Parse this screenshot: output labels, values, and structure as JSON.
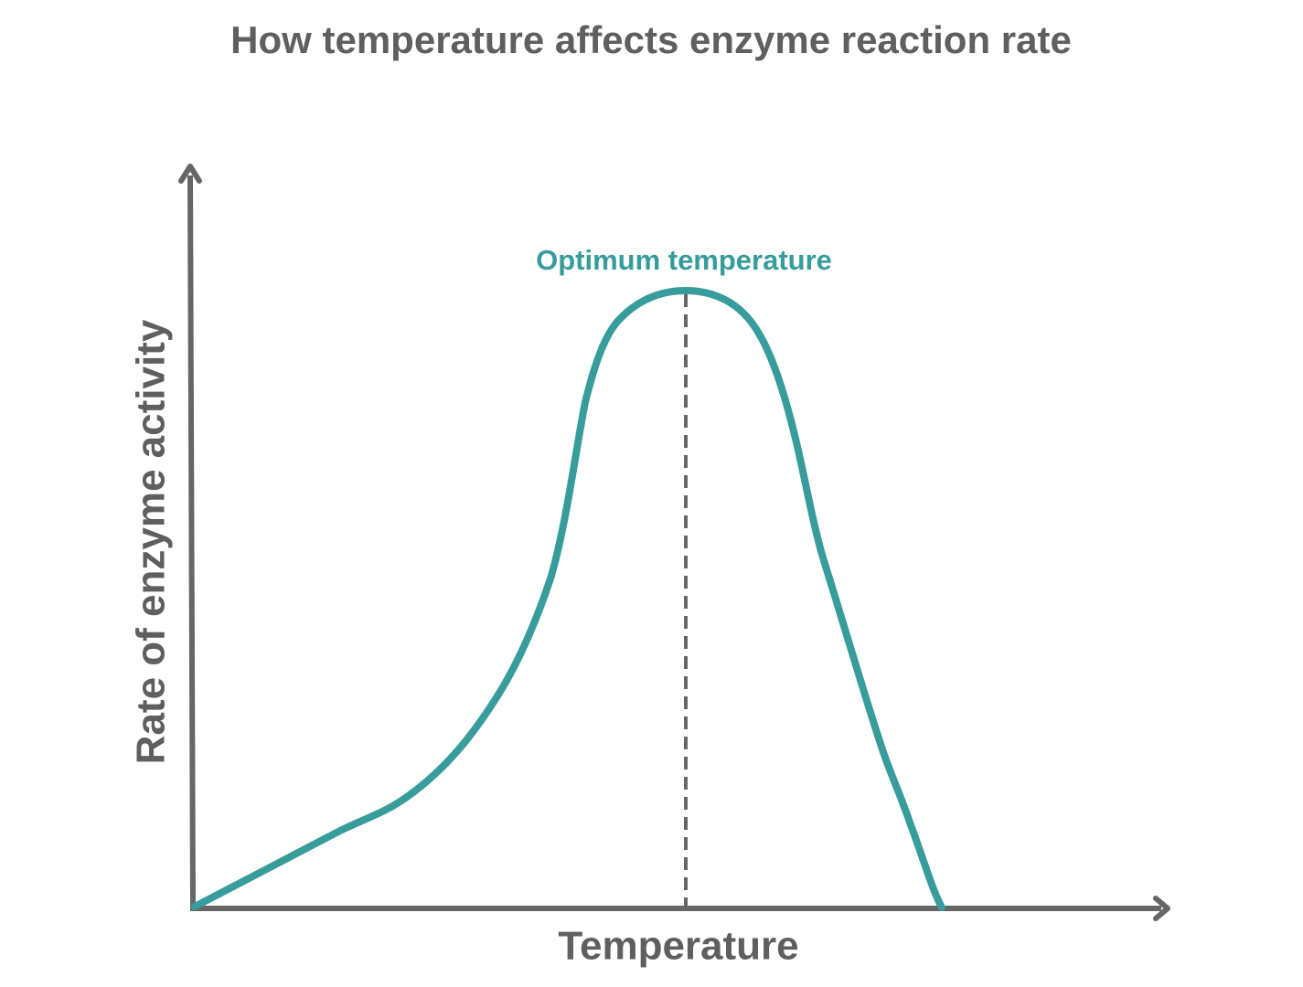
{
  "title": "How temperature affects enzyme reaction rate",
  "annotation": "Optimum temperature",
  "x_axis_label": "Temperature",
  "y_axis_label": "Rate of enzyme activity"
}
